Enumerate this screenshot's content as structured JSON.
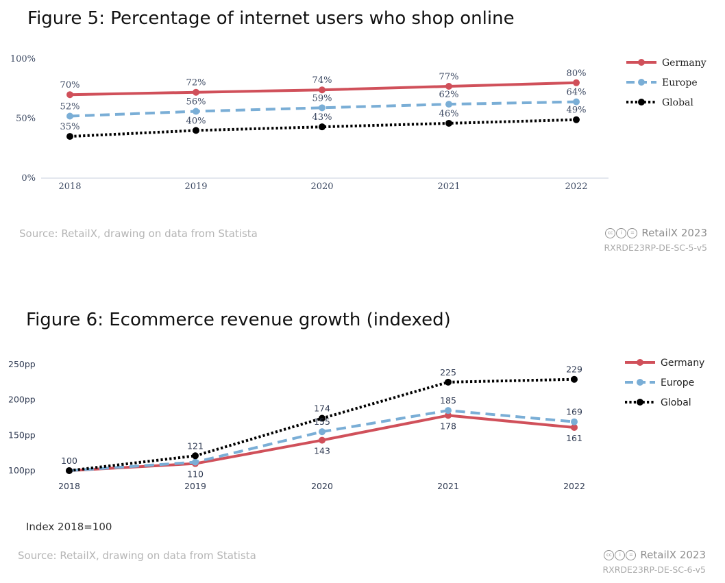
{
  "figures": [
    {
      "title": "Figure 5: Percentage of internet users who shop online",
      "source": "Source: RetailX, drawing on data from Statista",
      "copyright": "RetailX 2023",
      "code": "RXRDE23RP-DE-SC-5-v5"
    },
    {
      "title": "Figure 6: Ecommerce revenue growth (indexed)",
      "note": "Index 2018=100",
      "source": "Source: RetailX, drawing on data from Statista",
      "copyright": "RetailX 2023",
      "code": "RXRDE23RP-DE-SC-6-v5"
    }
  ],
  "chart_data": [
    {
      "type": "line",
      "title": "Figure 5: Percentage of internet users who shop online",
      "x": [
        "2018",
        "2019",
        "2020",
        "2021",
        "2022"
      ],
      "y_ticks": [
        "0%",
        "50%",
        "100%"
      ],
      "ylim": [
        0,
        100
      ],
      "legend_position": "top-right",
      "grid": false,
      "series": [
        {
          "name": "Germany",
          "values": [
            70,
            72,
            74,
            77,
            80
          ],
          "labels": [
            "70%",
            "72%",
            "74%",
            "77%",
            "80%"
          ],
          "color": "#d0505a",
          "style": "solid"
        },
        {
          "name": "Europe",
          "values": [
            52,
            56,
            59,
            62,
            64
          ],
          "labels": [
            "52%",
            "56%",
            "59%",
            "62%",
            "64%"
          ],
          "color": "#7aaed6",
          "style": "dashed"
        },
        {
          "name": "Global",
          "values": [
            35,
            40,
            43,
            46,
            49
          ],
          "labels": [
            "35%",
            "40%",
            "43%",
            "46%",
            "49%"
          ],
          "color": "#000000",
          "style": "dotted"
        }
      ]
    },
    {
      "type": "line",
      "title": "Figure 6: Ecommerce revenue growth (indexed)",
      "x": [
        "2018",
        "2019",
        "2020",
        "2021",
        "2022"
      ],
      "y_ticks": [
        "100pp",
        "150pp",
        "200pp",
        "250pp"
      ],
      "ylim": [
        100,
        250
      ],
      "legend_position": "top-right",
      "grid": false,
      "series": [
        {
          "name": "Germany",
          "values": [
            100,
            110,
            143,
            178,
            161
          ],
          "labels": [
            "100",
            "110",
            "143",
            "178",
            "161"
          ],
          "color": "#d0505a",
          "style": "solid"
        },
        {
          "name": "Europe",
          "values": [
            100,
            112,
            155,
            185,
            169
          ],
          "labels": [
            "",
            "",
            "155",
            "185",
            "169"
          ],
          "color": "#7aaed6",
          "style": "dashed"
        },
        {
          "name": "Global",
          "values": [
            100,
            121,
            174,
            225,
            229
          ],
          "labels": [
            "100",
            "121",
            "174",
            "225",
            "229"
          ],
          "color": "#000000",
          "style": "dotted"
        }
      ]
    }
  ]
}
